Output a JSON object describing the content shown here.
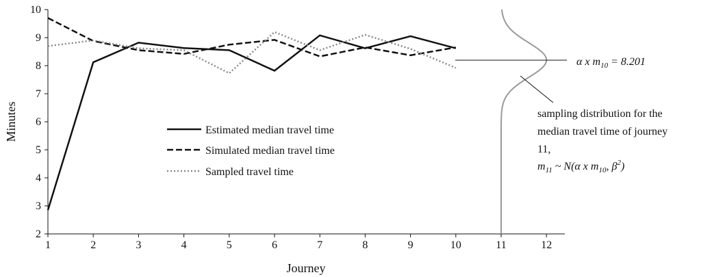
{
  "chart_data": {
    "type": "line",
    "title": "",
    "xlabel": "Journey",
    "ylabel": "Minutes",
    "xlim": [
      1,
      12
    ],
    "ylim": [
      2,
      10
    ],
    "xticks": [
      "1",
      "2",
      "3",
      "4",
      "5",
      "6",
      "7",
      "8",
      "9",
      "10",
      "11",
      "12"
    ],
    "yticks": [
      "2",
      "3",
      "4",
      "5",
      "6",
      "7",
      "8",
      "9",
      "10"
    ],
    "grid": false,
    "legend_position": "center-left",
    "series": [
      {
        "name": "Estimated median travel time",
        "style": "solid",
        "color": "#111111",
        "x": [
          1,
          2,
          3,
          4,
          5,
          6,
          7,
          8,
          9,
          10
        ],
        "values": [
          2.85,
          8.12,
          8.82,
          8.63,
          8.55,
          7.82,
          9.08,
          8.62,
          9.05,
          8.62
        ]
      },
      {
        "name": "Simulated median travel time",
        "style": "dashed",
        "color": "#111111",
        "x": [
          1,
          2,
          3,
          4,
          5,
          6,
          7,
          8,
          9,
          10
        ],
        "values": [
          9.7,
          8.88,
          8.55,
          8.42,
          8.75,
          8.92,
          8.33,
          8.65,
          8.37,
          8.65
        ]
      },
      {
        "name": "Sampled travel time",
        "style": "dotted",
        "color": "#888888",
        "x": [
          1,
          2,
          3,
          4,
          5,
          6,
          7,
          8,
          9,
          10
        ],
        "values": [
          8.7,
          8.9,
          8.62,
          8.55,
          7.73,
          9.2,
          8.55,
          9.1,
          8.6,
          7.92
        ]
      }
    ],
    "distribution": {
      "journey": 11,
      "mean": 8.2,
      "sd": 0.62,
      "peak_width_journeys": 1.0,
      "color": "#999999"
    },
    "annotations": {
      "alpha_label": "α x m",
      "alpha_sub": "10",
      "alpha_value": " = 8.201",
      "dist_line1": "sampling distribution for the",
      "dist_line2": "median travel time of journey",
      "dist_line3": "11,",
      "formula_m": "m",
      "formula_sub": "11",
      "formula_rest1": " ~ N(α x m",
      "formula_sub2": "10",
      "formula_rest2": ", β",
      "formula_sup": "2",
      "formula_end": ")"
    }
  }
}
